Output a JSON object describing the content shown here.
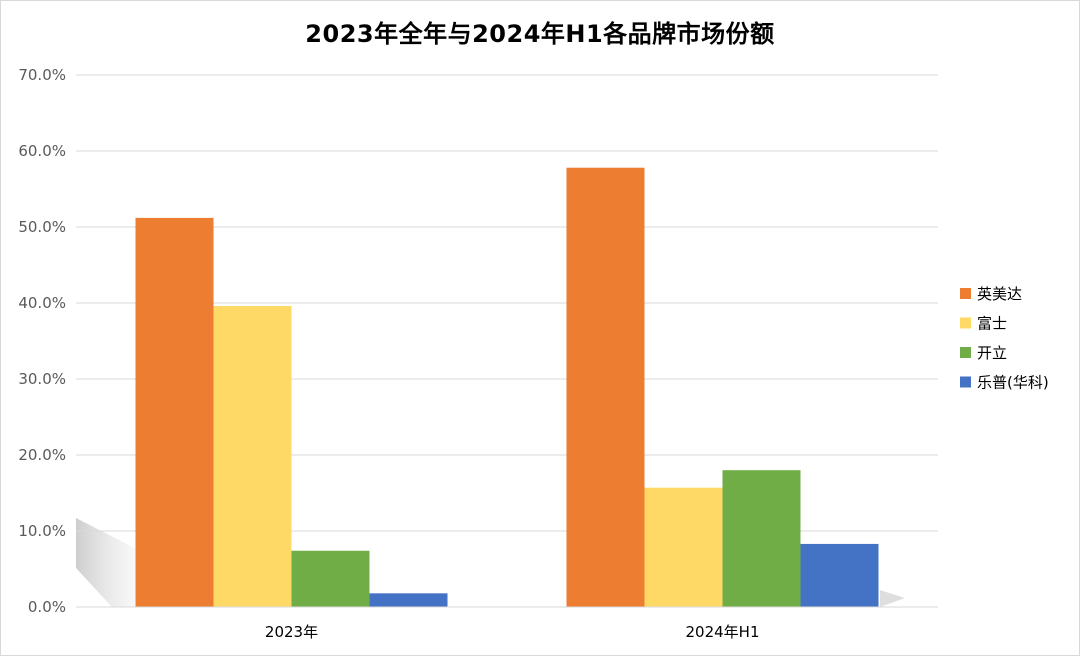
{
  "chart_data": {
    "type": "bar",
    "title": "2023年全年与2024年H1各品牌市场份额",
    "categories": [
      "2023年",
      "2024年H1"
    ],
    "series": [
      {
        "name": "英美达",
        "color": "#ED7D31",
        "values": [
          51.2,
          57.8
        ]
      },
      {
        "name": "富士",
        "color": "#FFD966",
        "values": [
          39.6,
          15.7
        ]
      },
      {
        "name": "开立",
        "color": "#70AD47",
        "values": [
          7.4,
          18.0
        ]
      },
      {
        "name": "乐普(华科)",
        "color": "#4472C4",
        "values": [
          1.8,
          8.3
        ]
      }
    ],
    "ylim": [
      0,
      70
    ],
    "yticks": [
      0,
      10,
      20,
      30,
      40,
      50,
      60,
      70
    ],
    "ytick_labels": [
      "0.0%",
      "10.0%",
      "20.0%",
      "30.0%",
      "40.0%",
      "50.0%",
      "60.0%",
      "70.0%"
    ],
    "grid": true,
    "legend_position": "right"
  }
}
